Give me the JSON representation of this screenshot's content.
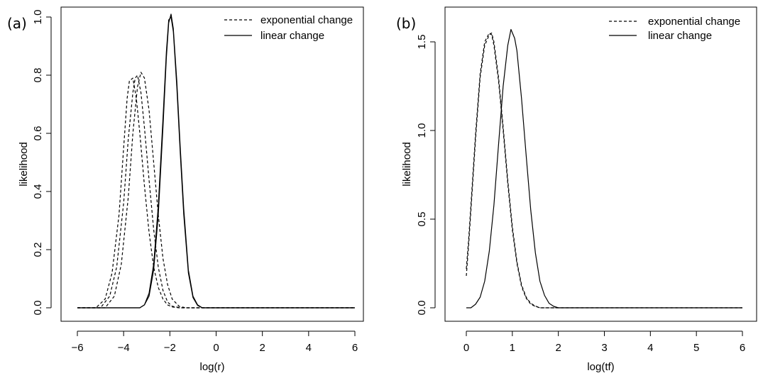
{
  "chart_data": [
    {
      "type": "line",
      "panel_label": "(a)",
      "xlabel": "log(r)",
      "ylabel": "likelihood",
      "xlim": [
        -6,
        6
      ],
      "ylim": [
        0,
        1
      ],
      "xticks": [
        -6,
        -4,
        -2,
        0,
        2,
        4,
        6
      ],
      "yticks": [
        0.0,
        0.2,
        0.4,
        0.6,
        0.8,
        1.0
      ],
      "tick_decimals": 1,
      "legend": {
        "position": "top-right",
        "entries": [
          {
            "label": "exponential change",
            "style": "dashed"
          },
          {
            "label": "linear change",
            "style": "solid"
          }
        ]
      },
      "series": [
        {
          "style": "dashed",
          "x": [
            -6,
            -5.2,
            -4.8,
            -4.5,
            -4.2,
            -4.0,
            -3.85,
            -3.75,
            -3.6,
            -3.45,
            -3.3,
            -3.1,
            -2.9,
            -2.7,
            -2.5,
            -2.3,
            -2.1,
            -1.9,
            -1.6,
            -1,
            6
          ],
          "y": [
            0,
            0,
            0.03,
            0.12,
            0.32,
            0.55,
            0.72,
            0.78,
            0.79,
            0.72,
            0.6,
            0.42,
            0.26,
            0.14,
            0.07,
            0.03,
            0.01,
            0.003,
            0,
            0,
            0
          ]
        },
        {
          "style": "dashed",
          "x": [
            -6,
            -5.0,
            -4.6,
            -4.3,
            -4.0,
            -3.8,
            -3.6,
            -3.5,
            -3.4,
            -3.25,
            -3.1,
            -2.9,
            -2.7,
            -2.5,
            -2.3,
            -2.1,
            -1.9,
            -1.5,
            6
          ],
          "y": [
            0,
            0,
            0.04,
            0.14,
            0.36,
            0.58,
            0.74,
            0.79,
            0.8,
            0.74,
            0.62,
            0.44,
            0.27,
            0.14,
            0.06,
            0.02,
            0.005,
            0,
            0
          ]
        },
        {
          "style": "dashed",
          "x": [
            -6,
            -4.8,
            -4.4,
            -4.1,
            -3.8,
            -3.6,
            -3.4,
            -3.25,
            -3.1,
            -2.9,
            -2.7,
            -2.5,
            -2.3,
            -2.1,
            -1.9,
            -1.6,
            -1.3,
            6
          ],
          "y": [
            0,
            0,
            0.04,
            0.15,
            0.38,
            0.6,
            0.76,
            0.81,
            0.79,
            0.68,
            0.5,
            0.32,
            0.17,
            0.08,
            0.03,
            0.005,
            0,
            0
          ]
        },
        {
          "style": "solid",
          "x": [
            -6,
            -3.3,
            -3.1,
            -2.9,
            -2.7,
            -2.5,
            -2.3,
            -2.15,
            -2.05,
            -1.95,
            -1.85,
            -1.7,
            -1.55,
            -1.4,
            -1.2,
            -1.0,
            -0.8,
            -0.6,
            6
          ],
          "y": [
            0,
            0,
            0.01,
            0.04,
            0.13,
            0.32,
            0.62,
            0.86,
            0.98,
            1.01,
            0.96,
            0.78,
            0.55,
            0.34,
            0.13,
            0.04,
            0.01,
            0,
            0
          ]
        },
        {
          "style": "solid",
          "x": [
            -6,
            -3.3,
            -3.1,
            -2.9,
            -2.7,
            -2.5,
            -2.3,
            -2.15,
            -2.05,
            -1.95,
            -1.85,
            -1.7,
            -1.55,
            -1.4,
            -1.2,
            -1.0,
            -0.8,
            -0.6,
            6
          ],
          "y": [
            0,
            0,
            0.01,
            0.05,
            0.15,
            0.35,
            0.65,
            0.88,
            0.99,
            1.0,
            0.95,
            0.76,
            0.53,
            0.32,
            0.12,
            0.035,
            0.008,
            0,
            0
          ]
        }
      ]
    },
    {
      "type": "line",
      "panel_label": "(b)",
      "xlabel": "log(tf)",
      "ylabel": "likelihood",
      "xlim": [
        0,
        6
      ],
      "ylim": [
        0,
        1.6
      ],
      "xticks": [
        0,
        1,
        2,
        3,
        4,
        5,
        6
      ],
      "yticks": [
        0.0,
        0.5,
        1.0,
        1.5
      ],
      "tick_decimals": 1,
      "legend": {
        "position": "top-right",
        "entries": [
          {
            "label": "exponential change",
            "style": "dashed"
          },
          {
            "label": "linear change",
            "style": "solid"
          }
        ]
      },
      "series": [
        {
          "style": "dashed",
          "x": [
            0,
            0.05,
            0.1,
            0.2,
            0.3,
            0.4,
            0.5,
            0.55,
            0.6,
            0.7,
            0.8,
            0.9,
            1.0,
            1.1,
            1.2,
            1.3,
            1.4,
            1.5,
            1.6,
            1.8,
            6
          ],
          "y": [
            0.18,
            0.35,
            0.55,
            0.95,
            1.3,
            1.48,
            1.54,
            1.55,
            1.5,
            1.3,
            1.02,
            0.72,
            0.46,
            0.26,
            0.13,
            0.06,
            0.025,
            0.01,
            0,
            0,
            0
          ]
        },
        {
          "style": "dashed",
          "x": [
            0,
            0.05,
            0.1,
            0.2,
            0.3,
            0.4,
            0.5,
            0.55,
            0.6,
            0.7,
            0.8,
            0.9,
            1.0,
            1.1,
            1.2,
            1.3,
            1.4,
            1.5,
            1.6,
            1.8,
            6
          ],
          "y": [
            0.22,
            0.38,
            0.58,
            0.98,
            1.32,
            1.5,
            1.55,
            1.54,
            1.48,
            1.28,
            1.0,
            0.7,
            0.44,
            0.25,
            0.12,
            0.055,
            0.02,
            0.008,
            0,
            0,
            0
          ]
        },
        {
          "style": "solid",
          "x": [
            0,
            0.1,
            0.2,
            0.3,
            0.4,
            0.5,
            0.6,
            0.7,
            0.8,
            0.9,
            0.97,
            1.05,
            1.1,
            1.2,
            1.3,
            1.4,
            1.5,
            1.6,
            1.7,
            1.8,
            1.9,
            2.0,
            6
          ],
          "y": [
            0,
            0,
            0.02,
            0.06,
            0.15,
            0.32,
            0.58,
            0.92,
            1.25,
            1.48,
            1.57,
            1.52,
            1.45,
            1.18,
            0.86,
            0.55,
            0.31,
            0.15,
            0.07,
            0.025,
            0.008,
            0,
            0
          ]
        }
      ]
    }
  ]
}
